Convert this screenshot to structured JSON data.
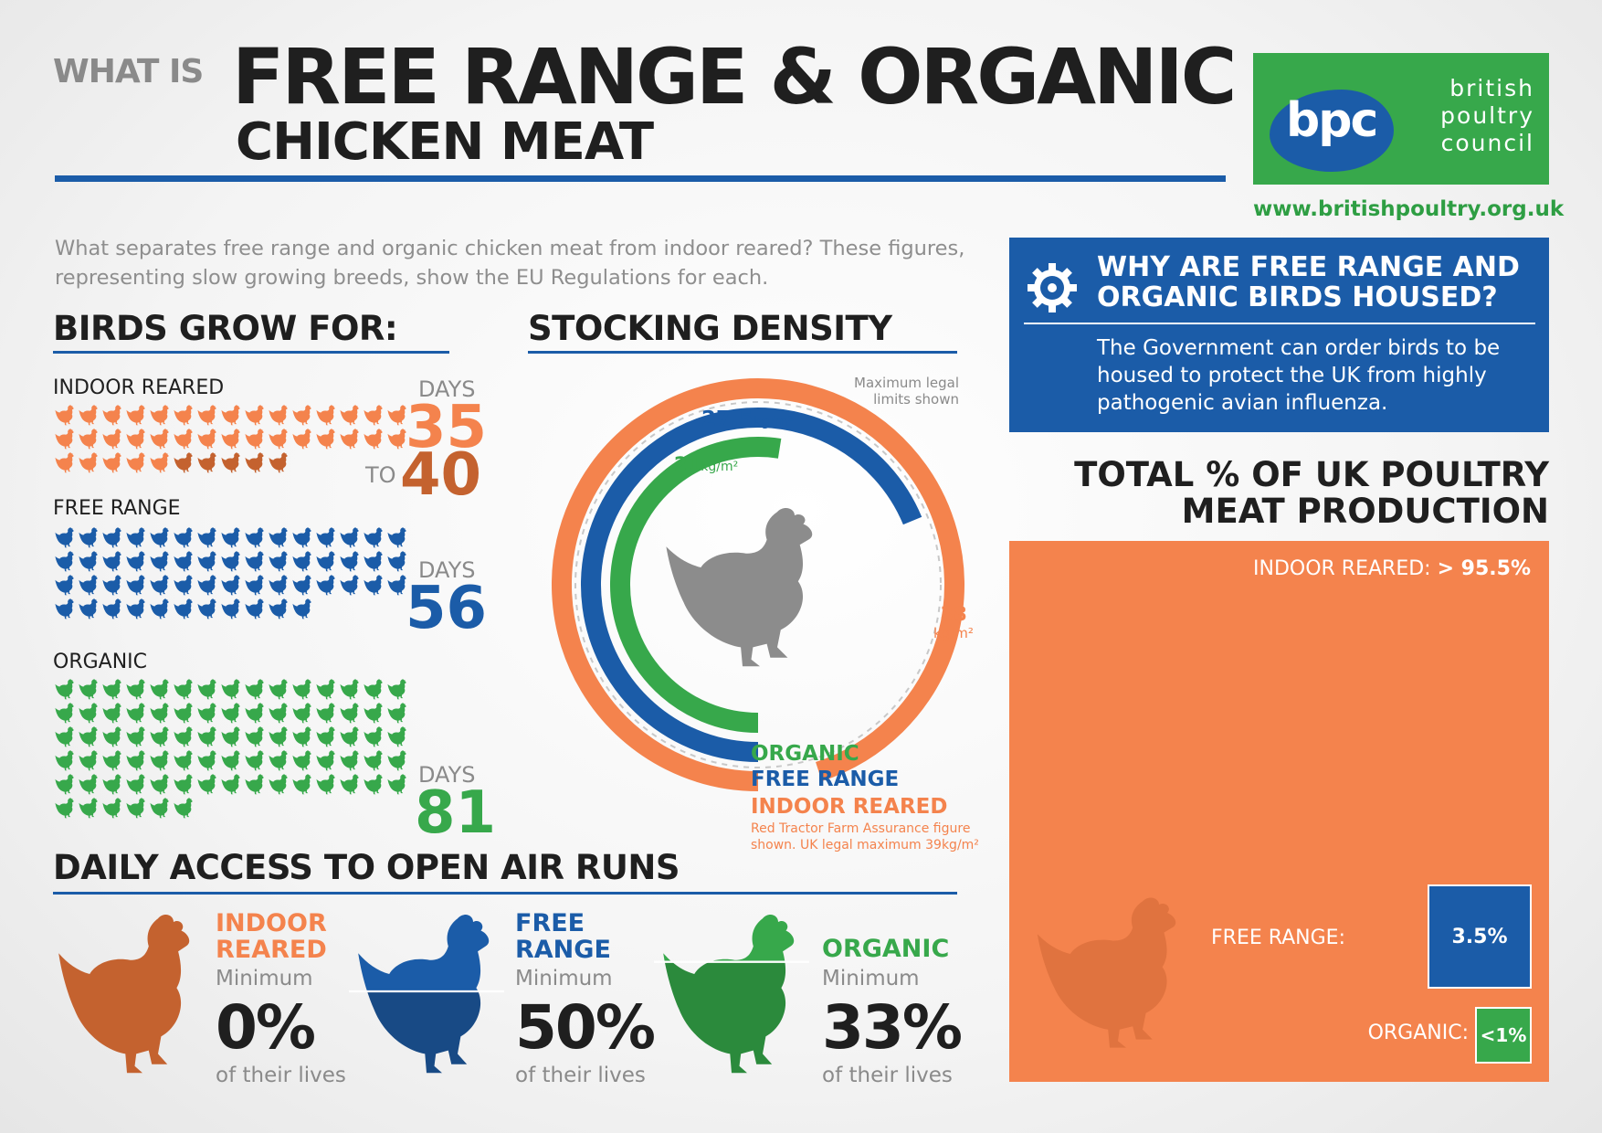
{
  "header": {
    "what_is": "WHAT IS",
    "title": "FREE RANGE & ORGANIC",
    "subtitle": "CHICKEN MEAT"
  },
  "logo": {
    "abbr": "bpc",
    "line1": "british",
    "line2": "poultry",
    "line3": "council",
    "url": "www.britishpoultry.org.uk"
  },
  "intro": "What separates free range and organic chicken meat from indoor reared? These figures, representing slow growing breeds, show the EU Regulations for each.",
  "grow": {
    "title": "BIRDS GROW FOR:",
    "days_label": "DAYS",
    "to_label": "TO",
    "indoor": {
      "label": "INDOOR REARED",
      "min": "35",
      "max": "40",
      "min_count": 35,
      "max_count": 40
    },
    "free_range": {
      "label": "FREE RANGE",
      "days": "56",
      "count": 56
    },
    "organic": {
      "label": "ORGANIC",
      "days": "81",
      "count": 81
    }
  },
  "stocking": {
    "title": "STOCKING DENSITY",
    "note": "Maximum legal limits shown",
    "free_range_value": "27.5",
    "organic_value": "21",
    "indoor_value": "38",
    "unit": "kg/m²",
    "label_organic": "ORGANIC",
    "label_free_range": "FREE RANGE",
    "label_indoor": "INDOOR REARED",
    "footnote_line1": "Red Tractor Farm Assurance figure",
    "footnote_line2": "shown. UK legal maximum 39kg/m²",
    "max_scale": 40
  },
  "why": {
    "title_line1": "WHY ARE FREE RANGE AND",
    "title_line2": "ORGANIC BIRDS HOUSED?",
    "body": "The Government can order birds to be housed to protect the UK from highly pathogenic avian influenza."
  },
  "total": {
    "title_line1": "TOTAL % OF UK POULTRY",
    "title_line2": "MEAT PRODUCTION",
    "indoor_label": "INDOOR REARED:",
    "indoor_value": "> 95.5%",
    "free_range_label": "FREE RANGE:",
    "free_range_value": "3.5%",
    "organic_label": "ORGANIC:",
    "organic_value": "<1%"
  },
  "open_air": {
    "title": "DAILY ACCESS TO OPEN AIR RUNS",
    "minimum_label": "Minimum",
    "lives_label": "of their lives",
    "indoor": {
      "line1": "INDOOR",
      "line2": "REARED",
      "pct": "0%",
      "fraction": 0
    },
    "free_range": {
      "line1": "FREE",
      "line2": "RANGE",
      "pct": "50%",
      "fraction": 0.5
    },
    "organic": {
      "line1": "ORGANIC",
      "pct": "33%",
      "fraction": 0.33
    }
  },
  "colors": {
    "orange": "#f4834d",
    "dark_orange": "#c4622f",
    "blue": "#1b5ca8",
    "dark_blue": "#184a85",
    "green": "#37a84b",
    "dark_green": "#2b8a3c",
    "grey_chicken": "#8c8c8c"
  }
}
